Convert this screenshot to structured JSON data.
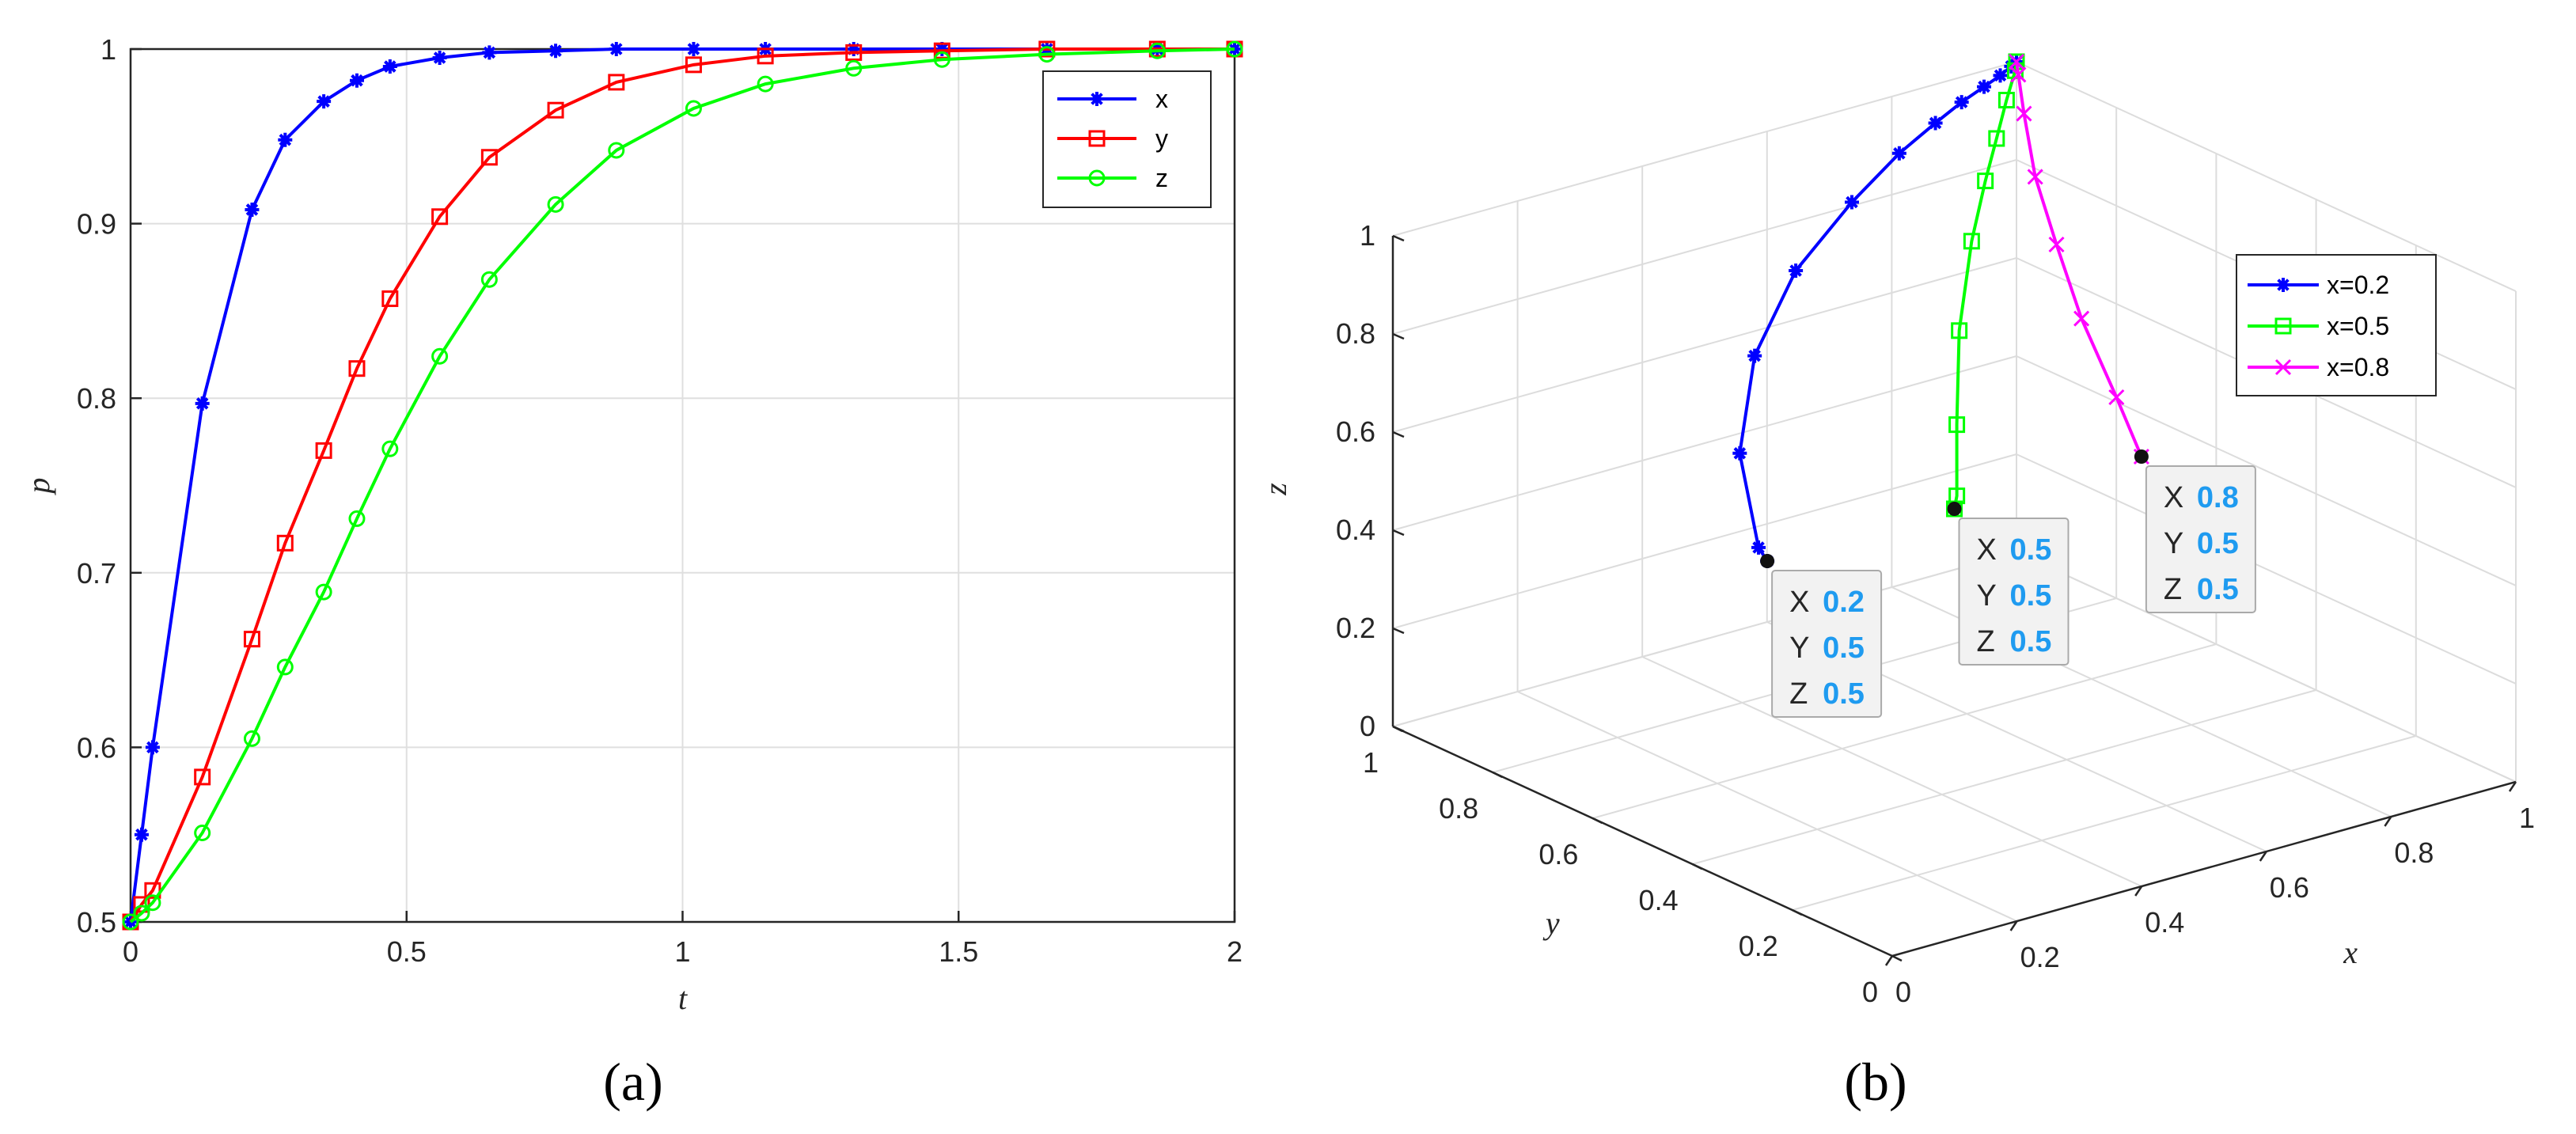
{
  "chart_data": [
    {
      "type": "line",
      "panel_label": "a",
      "xlabel": "t",
      "ylabel": "p",
      "xlim": [
        0,
        2
      ],
      "ylim": [
        0.5,
        1
      ],
      "xticks": [
        "0",
        "0.5",
        "1",
        "1.5",
        "2"
      ],
      "yticks": [
        "0.5",
        "0.6",
        "0.7",
        "0.8",
        "0.9",
        "1"
      ],
      "grid": true,
      "legend_position": "top-right",
      "series": [
        {
          "name": "x",
          "color": "#0000ff",
          "marker": "star",
          "points": [
            [
              0,
              0.5
            ],
            [
              0.02,
              0.55
            ],
            [
              0.04,
              0.6
            ],
            [
              0.13,
              0.797
            ],
            [
              0.22,
              0.908
            ],
            [
              0.28,
              0.948
            ],
            [
              0.35,
              0.97
            ],
            [
              0.41,
              0.982
            ],
            [
              0.47,
              0.99
            ],
            [
              0.56,
              0.995
            ],
            [
              0.65,
              0.998
            ],
            [
              0.77,
              0.999
            ],
            [
              0.88,
              1.0
            ],
            [
              1.02,
              1.0
            ],
            [
              1.15,
              1.0
            ],
            [
              1.31,
              1.0
            ],
            [
              1.47,
              1.0
            ],
            [
              1.66,
              1.0
            ],
            [
              1.86,
              1.0
            ],
            [
              2.0,
              1.0
            ]
          ]
        },
        {
          "name": "y",
          "color": "#ff0000",
          "marker": "square",
          "points": [
            [
              0,
              0.5
            ],
            [
              0.02,
              0.51
            ],
            [
              0.04,
              0.518
            ],
            [
              0.13,
              0.583
            ],
            [
              0.22,
              0.662
            ],
            [
              0.28,
              0.717
            ],
            [
              0.35,
              0.77
            ],
            [
              0.41,
              0.817
            ],
            [
              0.47,
              0.857
            ],
            [
              0.56,
              0.904
            ],
            [
              0.65,
              0.938
            ],
            [
              0.77,
              0.965
            ],
            [
              0.88,
              0.981
            ],
            [
              1.02,
              0.991
            ],
            [
              1.15,
              0.996
            ],
            [
              1.31,
              0.998
            ],
            [
              1.47,
              0.999
            ],
            [
              1.66,
              1.0
            ],
            [
              1.86,
              1.0
            ],
            [
              2.0,
              1.0
            ]
          ]
        },
        {
          "name": "z",
          "color": "#00ff00",
          "marker": "circle",
          "points": [
            [
              0,
              0.5
            ],
            [
              0.02,
              0.505
            ],
            [
              0.04,
              0.511
            ],
            [
              0.13,
              0.551
            ],
            [
              0.22,
              0.605
            ],
            [
              0.28,
              0.646
            ],
            [
              0.35,
              0.689
            ],
            [
              0.41,
              0.731
            ],
            [
              0.47,
              0.771
            ],
            [
              0.56,
              0.824
            ],
            [
              0.65,
              0.868
            ],
            [
              0.77,
              0.911
            ],
            [
              0.88,
              0.942
            ],
            [
              1.02,
              0.966
            ],
            [
              1.15,
              0.98
            ],
            [
              1.31,
              0.989
            ],
            [
              1.47,
              0.994
            ],
            [
              1.66,
              0.997
            ],
            [
              1.86,
              0.999
            ],
            [
              2.0,
              1.0
            ]
          ]
        }
      ]
    },
    {
      "type": "line",
      "subtype": "3d",
      "panel_label": "b",
      "xlabel": "x",
      "ylabel": "y",
      "zlabel": "z",
      "xlim": [
        0,
        1
      ],
      "ylim": [
        0,
        1
      ],
      "zlim": [
        0,
        1
      ],
      "xticks": [
        "0",
        "0.2",
        "0.4",
        "0.6",
        "0.8",
        "1"
      ],
      "yticks": [
        "0",
        "0.2",
        "0.4",
        "0.6",
        "0.8",
        "1"
      ],
      "zticks": [
        "0",
        "0.2",
        "0.4",
        "0.6",
        "0.8",
        "1"
      ],
      "grid": true,
      "legend_position": "right",
      "series": [
        {
          "name": "x=0.2",
          "color": "#0000ff",
          "marker": "star",
          "points": [
            [
              0.2,
              0.5,
              0.5
            ],
            [
              0.21,
              0.53,
              0.51
            ],
            [
              0.3,
              0.68,
              0.6
            ],
            [
              0.42,
              0.8,
              0.7
            ],
            [
              0.55,
              0.88,
              0.79
            ],
            [
              0.68,
              0.93,
              0.86
            ],
            [
              0.78,
              0.96,
              0.91
            ],
            [
              0.85,
              0.975,
              0.94
            ],
            [
              0.9,
              0.985,
              0.96
            ],
            [
              0.94,
              0.99,
              0.975
            ],
            [
              0.97,
              0.995,
              0.985
            ],
            [
              0.99,
              0.998,
              0.995
            ],
            [
              1,
              1,
              1
            ]
          ]
        },
        {
          "name": "x=0.5",
          "color": "#00ff00",
          "marker": "square",
          "points": [
            [
              0.5,
              0.5,
              0.5
            ],
            [
              0.52,
              0.52,
              0.51
            ],
            [
              0.6,
              0.62,
              0.58
            ],
            [
              0.7,
              0.74,
              0.68
            ],
            [
              0.8,
              0.84,
              0.78
            ],
            [
              0.87,
              0.9,
              0.85
            ],
            [
              0.92,
              0.94,
              0.9
            ],
            [
              0.96,
              0.97,
              0.95
            ],
            [
              0.99,
              0.99,
              0.99
            ],
            [
              1,
              1,
              1
            ]
          ]
        },
        {
          "name": "x=0.8",
          "color": "#ff00ff",
          "marker": "x",
          "points": [
            [
              0.8,
              0.5,
              0.5
            ],
            [
              0.84,
              0.6,
              0.56
            ],
            [
              0.88,
              0.72,
              0.65
            ],
            [
              0.92,
              0.82,
              0.74
            ],
            [
              0.95,
              0.9,
              0.83
            ],
            [
              0.98,
              0.96,
              0.92
            ],
            [
              0.995,
              0.99,
              0.98
            ],
            [
              1,
              1,
              1
            ]
          ]
        }
      ],
      "datatips": [
        {
          "X": "0.2",
          "Y": "0.5",
          "Z": "0.5"
        },
        {
          "X": "0.5",
          "Y": "0.5",
          "Z": "0.5"
        },
        {
          "X": "0.8",
          "Y": "0.5",
          "Z": "0.5"
        }
      ]
    }
  ],
  "datatip_keys": {
    "x": "X",
    "y": "Y",
    "z": "Z"
  },
  "captions": {
    "a": "(a)",
    "b": "(b)"
  }
}
